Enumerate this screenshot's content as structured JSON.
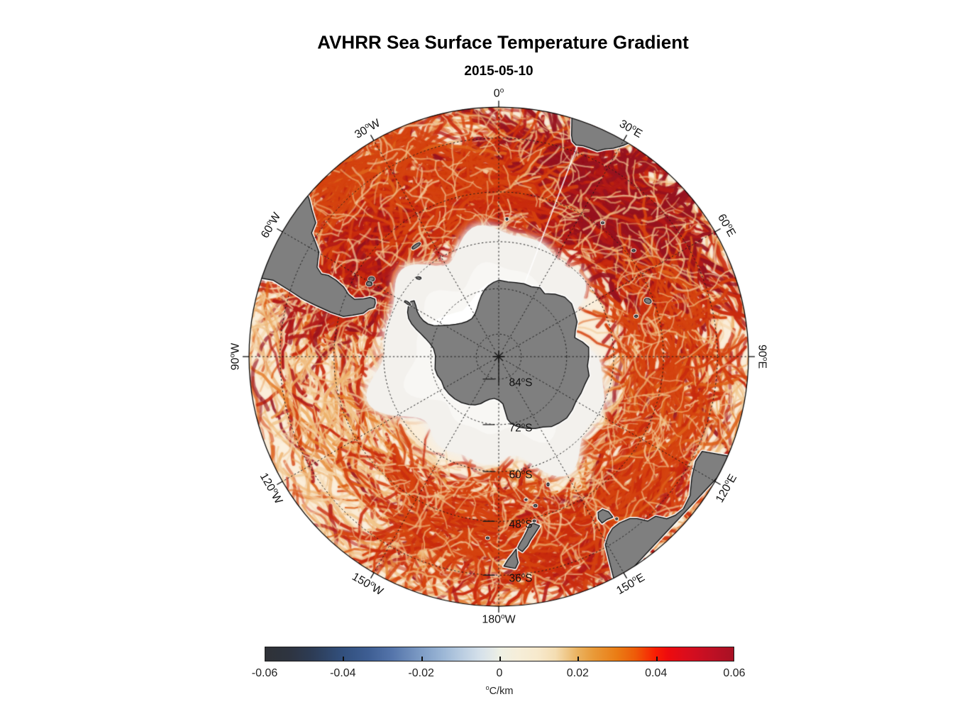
{
  "header": {
    "title": "AVHRR Sea Surface Temperature Gradient",
    "subtitle": "2015-05-10"
  },
  "map": {
    "degree_glyph": "o",
    "pole_marker": "asterisk",
    "meridian_labels": [
      {
        "value": "0",
        "suffix": "",
        "angle": 0
      },
      {
        "value": "30",
        "suffix": "E",
        "angle": 30
      },
      {
        "value": "60",
        "suffix": "E",
        "angle": 60
      },
      {
        "value": "90",
        "suffix": "E",
        "angle": 90
      },
      {
        "value": "120",
        "suffix": "E",
        "angle": 120
      },
      {
        "value": "150",
        "suffix": "E",
        "angle": 150
      },
      {
        "value": "180",
        "suffix": "W",
        "angle": 180
      },
      {
        "value": "150",
        "suffix": "W",
        "angle": -150
      },
      {
        "value": "120",
        "suffix": "W",
        "angle": -120
      },
      {
        "value": "90",
        "suffix": "W",
        "angle": -90
      },
      {
        "value": "60",
        "suffix": "W",
        "angle": -60
      },
      {
        "value": "30",
        "suffix": "W",
        "angle": -30
      }
    ],
    "parallel_labels": [
      {
        "value": "84",
        "suffix": "S",
        "lat": -84
      },
      {
        "value": "72",
        "suffix": "S",
        "lat": -72
      },
      {
        "value": "60",
        "suffix": "S",
        "lat": -60
      },
      {
        "value": "48",
        "suffix": "S",
        "lat": -48
      },
      {
        "value": "36",
        "suffix": "S",
        "lat": -36
      }
    ],
    "colors": {
      "ocean": "#fbeeda",
      "ice_zone": "#f3f1ed",
      "land": "#7f7f7f",
      "coastline": "#000000",
      "graticule": "#1a1a1a"
    }
  },
  "colorbar": {
    "ticks": [
      "-0.06",
      "-0.04",
      "-0.02",
      "0",
      "0.02",
      "0.04",
      "0.06"
    ],
    "unit_sup": "o",
    "unit_text": "C/km",
    "min": -0.06,
    "max": 0.06,
    "gradient": [
      [
        0.0,
        "#2f3237"
      ],
      [
        0.05,
        "#2e3440"
      ],
      [
        0.1,
        "#2d3c55"
      ],
      [
        0.167,
        "#32507e"
      ],
      [
        0.22,
        "#3e5e93"
      ],
      [
        0.27,
        "#5474aa"
      ],
      [
        0.333,
        "#7e9cc5"
      ],
      [
        0.38,
        "#9cb7d6"
      ],
      [
        0.42,
        "#bacde1"
      ],
      [
        0.46,
        "#d6e1ea"
      ],
      [
        0.49,
        "#e7ebe7"
      ],
      [
        0.5,
        "#eef0e4"
      ],
      [
        0.54,
        "#f6eed9"
      ],
      [
        0.583,
        "#f7e9cc"
      ],
      [
        0.62,
        "#f4ddb2"
      ],
      [
        0.667,
        "#eab25f"
      ],
      [
        0.7,
        "#e99a39"
      ],
      [
        0.75,
        "#ea7d15"
      ],
      [
        0.79,
        "#ee5b08"
      ],
      [
        0.833,
        "#f81e03"
      ],
      [
        0.86,
        "#ee0b0e"
      ],
      [
        0.895,
        "#dc0d1b"
      ],
      [
        0.917,
        "#d20e20"
      ],
      [
        0.96,
        "#bc1024"
      ],
      [
        1.0,
        "#a81124"
      ]
    ]
  },
  "chart_data": {
    "type": "heatmap",
    "title": "AVHRR Sea Surface Temperature Gradient",
    "subtitle": "2015-05-10",
    "projection": "south polar stereographic",
    "colorbar": {
      "label": "°C/km",
      "min": -0.06,
      "max": 0.06,
      "ticks": [
        -0.06,
        -0.04,
        -0.02,
        0,
        0.02,
        0.04,
        0.06
      ]
    },
    "graticule": {
      "meridian_interval_deg": 30,
      "parallels_labeled": [
        "84S",
        "72S",
        "60S",
        "48S",
        "36S"
      ],
      "style": "dotted",
      "outer_latitude_S": 30
    },
    "land_features": [
      "Antarctica",
      "Antarctic Peninsula",
      "South America (Patagonia)",
      "Southern Africa",
      "Australia",
      "Tasmania",
      "New Zealand",
      "Kerguelen",
      "South Georgia",
      "Falkland Islands"
    ],
    "description": "Magnitude of SST gradient over the Southern Ocean. Cream background near 0 °C/km; orange-to-dark-red filaments (0.01-0.06 °C/km) trace ocean fronts, strongest in the Agulhas Return Current (20-60E), Drake Passage / Scotia Sea (70-30W) and along the Antarctic Circumpolar Current; white/no-data sea-ice zone surrounds gray Antarctica."
  }
}
